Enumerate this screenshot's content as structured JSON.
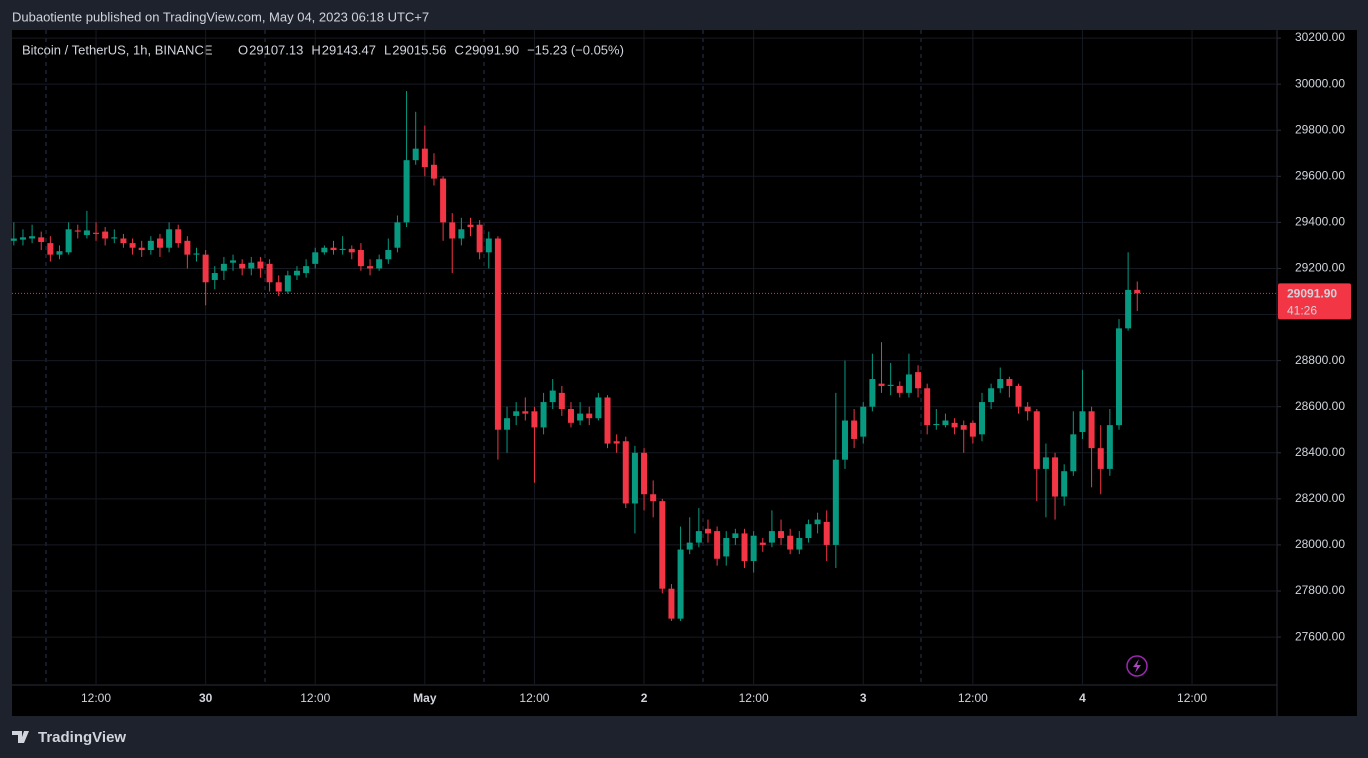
{
  "header": {
    "published": "Dubaotiente published on TradingView.com, May 04, 2023 06:18 UTC+7"
  },
  "footer": {
    "brand": "TradingView"
  },
  "chart_data": {
    "type": "candlestick",
    "title": "Bitcoin / TetherUS, 1h, BINANCE",
    "legend_labels": [
      "O",
      "H",
      "L",
      "C"
    ],
    "change": {
      "value": -15.23,
      "label": "−15.23 (−0.05%)"
    },
    "last_price": {
      "value": 29091.9,
      "label": "29091.90"
    },
    "countdown": "41:26",
    "up_color": "#089981",
    "down_color": "#f23645",
    "grid": true,
    "xlim": [
      -45.2,
      93.3
    ],
    "xticks": [
      {
        "value": -36,
        "label": "12:00"
      },
      {
        "value": -24,
        "label": "30"
      },
      {
        "value": -12,
        "label": "12:00"
      },
      {
        "value": 0,
        "label": "May"
      },
      {
        "value": 12,
        "label": "12:00"
      },
      {
        "value": 24,
        "label": "2"
      },
      {
        "value": 36,
        "label": "12:00"
      },
      {
        "value": 48,
        "label": "3"
      },
      {
        "value": 60,
        "label": "12:00"
      },
      {
        "value": 72,
        "label": "4"
      },
      {
        "value": 84,
        "label": "12:00"
      }
    ],
    "ylim": [
      27392,
      30235
    ],
    "yticks": [
      {
        "value": 27600,
        "label": "27600.00"
      },
      {
        "value": 27800,
        "label": "27800.00"
      },
      {
        "value": 28000,
        "label": "28000.00"
      },
      {
        "value": 28200,
        "label": "28200.00"
      },
      {
        "value": 28400,
        "label": "28400.00"
      },
      {
        "value": 28600,
        "label": "28600.00"
      },
      {
        "value": 28800,
        "label": "28800.00"
      },
      {
        "value": 29000,
        "label": "29000.00"
      },
      {
        "value": 29200,
        "label": "29200.00"
      },
      {
        "value": 29400,
        "label": "29400.00"
      },
      {
        "value": 29600,
        "label": "29600.00"
      },
      {
        "value": 29800,
        "label": "29800.00"
      },
      {
        "value": 30000,
        "label": "30000.00"
      },
      {
        "value": 30200,
        "label": "30200.00"
      }
    ],
    "x": [
      -45,
      -44,
      -43,
      -42,
      -41,
      -40,
      -39,
      -38,
      -37,
      -36,
      -35,
      -34,
      -33,
      -32,
      -31,
      -30,
      -29,
      -28,
      -27,
      -26,
      -25,
      -24,
      -23,
      -22,
      -21,
      -20,
      -19,
      -18,
      -17,
      -16,
      -15,
      -14,
      -13,
      -12,
      -11,
      -10,
      -9,
      -8,
      -7,
      -6,
      -5,
      -4,
      -3,
      -2,
      -1,
      0,
      1,
      2,
      3,
      4,
      5,
      6,
      7,
      8,
      9,
      10,
      11,
      12,
      13,
      14,
      15,
      16,
      17,
      18,
      19,
      20,
      21,
      22,
      23,
      24,
      25,
      26,
      27,
      28,
      29,
      30,
      31,
      32,
      33,
      34,
      35,
      36,
      37,
      38,
      39,
      40,
      41,
      42,
      43,
      44,
      45,
      46,
      47,
      48,
      49,
      50,
      51,
      52,
      53,
      54,
      55,
      56,
      57,
      58,
      59,
      60,
      61,
      62,
      63,
      64,
      65,
      66,
      67,
      68,
      69,
      70,
      71,
      72,
      73,
      74,
      75,
      76,
      77,
      78
    ],
    "open": [
      29320,
      29325,
      29330,
      29335,
      29310,
      29260,
      29270,
      29365,
      29345,
      29355,
      29360,
      29330,
      29330,
      29310,
      29290,
      29280,
      29330,
      29290,
      29370,
      29320,
      29260,
      29260,
      29150,
      29190,
      29225,
      29220,
      29200,
      29230,
      29220,
      29140,
      29100,
      29170,
      29180,
      29220,
      29270,
      29290,
      29280,
      29285,
      29280,
      29210,
      29200,
      29240,
      29290,
      29400,
      29670,
      29720,
      29650,
      29590,
      29400,
      29330,
      29390,
      29390,
      29270,
      29330,
      28500,
      28560,
      28580,
      28580,
      28510,
      28620,
      28660,
      28590,
      28540,
      28570,
      28550,
      28640,
      28450,
      28450,
      28180,
      28400,
      28220,
      28190,
      27810,
      27680,
      27980,
      28010,
      28070,
      28060,
      27950,
      28030,
      28050,
      27930,
      28010,
      28010,
      28060,
      28040,
      27980,
      28030,
      28090,
      28100,
      28000,
      28370,
      28540,
      28470,
      28600,
      28700,
      28690,
      28690,
      28660,
      28750,
      28680,
      28520,
      28520,
      28530,
      28520,
      28530,
      28480,
      28620,
      28680,
      28720,
      28690,
      28600,
      28580,
      28330,
      28380,
      28210,
      28320,
      28490,
      28580,
      28420,
      28330,
      28520,
      28940,
      29107.13
    ],
    "high": [
      29400,
      29370,
      29390,
      29360,
      29340,
      29300,
      29400,
      29390,
      29450,
      29400,
      29380,
      29370,
      29350,
      29330,
      29320,
      29340,
      29350,
      29400,
      29390,
      29340,
      29290,
      29280,
      29210,
      29250,
      29260,
      29240,
      29250,
      29250,
      29240,
      29170,
      29190,
      29210,
      29240,
      29290,
      29300,
      29320,
      29340,
      29300,
      29310,
      29240,
      29260,
      29330,
      29430,
      29970,
      29880,
      29820,
      29700,
      29600,
      29440,
      29420,
      29420,
      29410,
      29360,
      29340,
      28600,
      28620,
      28640,
      28600,
      28660,
      28720,
      28690,
      28620,
      28620,
      28600,
      28660,
      28650,
      28480,
      28470,
      28430,
      28420,
      28280,
      28200,
      27830,
      28080,
      28120,
      28160,
      28110,
      28080,
      28060,
      28070,
      28070,
      28060,
      28030,
      28150,
      28110,
      28070,
      28060,
      28110,
      28140,
      28150,
      28660,
      28800,
      28590,
      28620,
      28830,
      28880,
      28790,
      28710,
      28830,
      28780,
      28700,
      28590,
      28570,
      28550,
      28540,
      28540,
      28660,
      28700,
      28770,
      28730,
      28700,
      28620,
      28590,
      28440,
      28400,
      28350,
      28580,
      28760,
      28600,
      28520,
      28590,
      28980,
      29270,
      29143.47
    ],
    "low": [
      29300,
      29300,
      29310,
      29280,
      29230,
      29240,
      29260,
      29330,
      29330,
      29320,
      29300,
      29310,
      29290,
      29260,
      29250,
      29260,
      29250,
      29270,
      29290,
      29200,
      29230,
      29040,
      29110,
      29150,
      29190,
      29170,
      29170,
      29160,
      29100,
      29080,
      29090,
      29150,
      29160,
      29200,
      29260,
      29260,
      29260,
      29240,
      29190,
      29170,
      29190,
      29220,
      29270,
      29380,
      29650,
      29600,
      29560,
      29320,
      29180,
      29300,
      29340,
      29240,
      29200,
      28370,
      28400,
      28520,
      28540,
      28270,
      28480,
      28590,
      28560,
      28510,
      28520,
      28520,
      28540,
      28420,
      28400,
      28160,
      28050,
      28150,
      28120,
      27790,
      27670,
      27670,
      27960,
      27990,
      28010,
      27910,
      27910,
      28000,
      27900,
      27880,
      27970,
      27990,
      28000,
      27960,
      27960,
      28010,
      28050,
      27930,
      27900,
      28330,
      28420,
      28440,
      28580,
      28660,
      28650,
      28640,
      28640,
      28640,
      28480,
      28500,
      28510,
      28480,
      28400,
      28440,
      28450,
      28590,
      28660,
      28640,
      28570,
      28540,
      28190,
      28120,
      28110,
      28170,
      28300,
      28460,
      28250,
      28220,
      28300,
      28500,
      28930,
      29015.56
    ],
    "close": [
      29330,
      29335,
      29340,
      29315,
      29260,
      29275,
      29370,
      29360,
      29365,
      29350,
      29330,
      29335,
      29310,
      29290,
      29280,
      29320,
      29290,
      29370,
      29310,
      29260,
      29265,
      29140,
      29180,
      29220,
      29235,
      29200,
      29225,
      29200,
      29140,
      29100,
      29170,
      29190,
      29210,
      29270,
      29290,
      29280,
      29285,
      29270,
      29210,
      29200,
      29240,
      29280,
      29400,
      29670,
      29720,
      29640,
      29590,
      29400,
      29330,
      29370,
      29380,
      29270,
      29330,
      28500,
      28550,
      28580,
      28570,
      28510,
      28620,
      28670,
      28590,
      28530,
      28570,
      28550,
      28640,
      28440,
      28440,
      28180,
      28400,
      28220,
      28190,
      27810,
      27680,
      27980,
      28010,
      28060,
      28050,
      27940,
      28030,
      28050,
      27930,
      28040,
      28000,
      28060,
      28030,
      27980,
      28030,
      28090,
      28110,
      28000,
      28370,
      28540,
      28460,
      28600,
      28720,
      28690,
      28695,
      28660,
      28740,
      28680,
      28520,
      28525,
      28540,
      28510,
      28500,
      28470,
      28620,
      28680,
      28720,
      28690,
      28600,
      28580,
      28330,
      28380,
      28210,
      28320,
      28480,
      28580,
      28420,
      28330,
      28520,
      28940,
      29107,
      29091.9
    ]
  }
}
